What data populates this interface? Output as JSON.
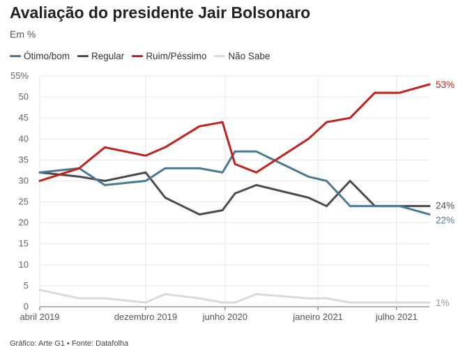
{
  "chart_data": {
    "type": "line",
    "title": "Avaliação do presidente Jair Bolsonaro",
    "subtitle": "Em %",
    "source": "Gráfico: Arte G1 • Fonte: Datafolha",
    "ylim": [
      0,
      55
    ],
    "yticks": [
      "0",
      "5",
      "10",
      "15",
      "20",
      "25",
      "30",
      "35",
      "40",
      "45",
      "50",
      "55%"
    ],
    "ytick_values": [
      0,
      5,
      10,
      15,
      20,
      25,
      30,
      35,
      40,
      45,
      50,
      55
    ],
    "xtick_labels": [
      "abril 2019",
      "dezembro 2019",
      "junho 2020",
      "janeiro 2021",
      "julho 2021"
    ],
    "xtick_dates": [
      "2019-04-01",
      "2019-12-01",
      "2020-06-01",
      "2021-01-01",
      "2021-07-01"
    ],
    "dates": [
      "2019-04-01",
      "2019-07-01",
      "2019-08-29",
      "2019-12-01",
      "2020-01-15",
      "2020-04-03",
      "2020-05-26",
      "2020-06-24",
      "2020-08-12",
      "2020-12-10",
      "2021-01-21",
      "2021-03-16",
      "2021-05-12",
      "2021-07-08",
      "2021-09-15"
    ],
    "grid": true,
    "legend_position": "top-left",
    "series": [
      {
        "name": "Ótimo/bom",
        "color": "#4a7a93",
        "end_label": "22%",
        "values": [
          32,
          33,
          29,
          30,
          33,
          33,
          32,
          37,
          37,
          31,
          30,
          24,
          24,
          24,
          22
        ]
      },
      {
        "name": "Regular",
        "color": "#4b4b4b",
        "end_label": "24%",
        "values": [
          32,
          31,
          30,
          32,
          26,
          22,
          23,
          27,
          29,
          26,
          24,
          30,
          24,
          24,
          24
        ]
      },
      {
        "name": "Ruim/Péssimo",
        "color": "#c4201a",
        "end_label": "53%",
        "values": [
          30,
          33,
          38,
          36,
          38,
          43,
          44,
          34,
          32,
          40,
          44,
          45,
          51,
          51,
          53
        ]
      },
      {
        "name": "Não Sabe",
        "color": "#d9d9d9",
        "end_label": "1%",
        "values": [
          4,
          2,
          2,
          1,
          3,
          2,
          1,
          1,
          3,
          2,
          2,
          1,
          1,
          1,
          1
        ]
      }
    ]
  }
}
